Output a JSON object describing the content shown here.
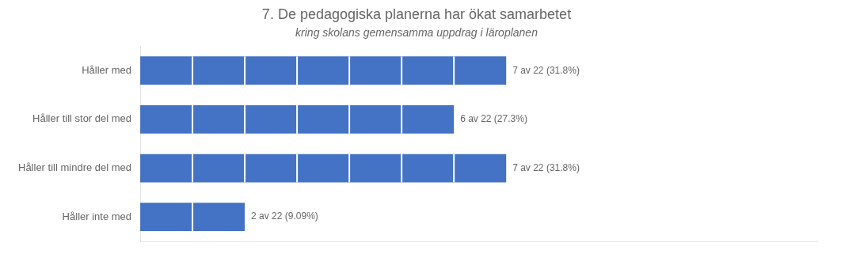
{
  "chart_data": {
    "type": "bar",
    "orientation": "horizontal",
    "title": "7. De pedagogiska planerna har ökat samarbetet",
    "subtitle": "kring skolans gemensamma uppdrag i läroplanen",
    "categories": [
      "Håller med",
      "Håller till stor del med",
      "Håller till mindre del med",
      "Håller inte med"
    ],
    "values": [
      7,
      6,
      7,
      2
    ],
    "value_labels": [
      "7 av 22 (31.8%)",
      "6 av 22 (27.3%)",
      "7 av 22 (31.8%)",
      "2 av 22 (9.09%)"
    ],
    "color": "#4472C4",
    "xlim": [
      0,
      12.95
    ],
    "grid": false,
    "data_labels": true,
    "tick_labels": "y"
  }
}
